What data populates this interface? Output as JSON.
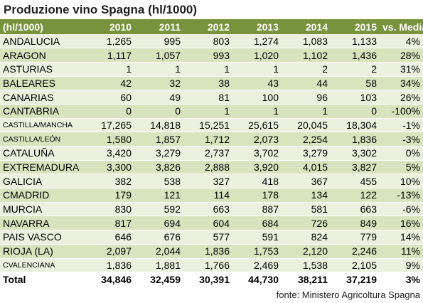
{
  "title": "Produzione vino Spagna (hl/1000)",
  "header": [
    "(hl/1000)",
    "2010",
    "2011",
    "2012",
    "2013",
    "2014",
    "2015",
    "vs. Media"
  ],
  "rows": [
    {
      "name": "ANDALUCIA",
      "values": [
        "1,265",
        "995",
        "803",
        "1,274",
        "1,083",
        "1,133",
        "4%"
      ]
    },
    {
      "name": "ARAGON",
      "values": [
        "1,117",
        "1,057",
        "993",
        "1,020",
        "1,102",
        "1,436",
        "28%"
      ]
    },
    {
      "name": "ASTURIAS",
      "values": [
        "1",
        "1",
        "1",
        "1",
        "2",
        "2",
        "31%"
      ]
    },
    {
      "name": "BALEARES",
      "values": [
        "42",
        "32",
        "38",
        "43",
        "44",
        "58",
        "34%"
      ]
    },
    {
      "name": "CANARIAS",
      "values": [
        "60",
        "49",
        "81",
        "100",
        "96",
        "103",
        "26%"
      ]
    },
    {
      "name": "CANTABRIA",
      "values": [
        "0",
        "0",
        "1",
        "1",
        "1",
        "0",
        "-100%"
      ]
    },
    {
      "name": "CASTILLA/MANCHA",
      "small": true,
      "values": [
        "17,265",
        "14,818",
        "15,251",
        "25,615",
        "20,045",
        "18,304",
        "-1%"
      ]
    },
    {
      "name": "CASTILLA/LEÓN",
      "small": true,
      "values": [
        "1,580",
        "1,857",
        "1,712",
        "2,073",
        "2,254",
        "1,836",
        "-3%"
      ]
    },
    {
      "name": "CATALUÑA",
      "values": [
        "3,420",
        "3,279",
        "2,737",
        "3,702",
        "3,279",
        "3,302",
        "0%"
      ]
    },
    {
      "name": "EXTREMADURA",
      "values": [
        "3,300",
        "3,826",
        "2,888",
        "3,920",
        "4,015",
        "3,827",
        "5%"
      ]
    },
    {
      "name": "GALICIA",
      "values": [
        "382",
        "538",
        "327",
        "418",
        "367",
        "455",
        "10%"
      ]
    },
    {
      "name": "CMADRID",
      "values": [
        "179",
        "121",
        "114",
        "178",
        "134",
        "122",
        "-13%"
      ]
    },
    {
      "name": "MURCIA",
      "values": [
        "830",
        "592",
        "663",
        "887",
        "581",
        "663",
        "-6%"
      ]
    },
    {
      "name": "NAVARRA",
      "values": [
        "817",
        "694",
        "604",
        "684",
        "726",
        "849",
        "16%"
      ]
    },
    {
      "name": "PAIS VASCO",
      "values": [
        "646",
        "676",
        "577",
        "591",
        "824",
        "779",
        "14%"
      ]
    },
    {
      "name": "RIOJA (LA)",
      "values": [
        "2,097",
        "2,044",
        "1,836",
        "1,753",
        "2,120",
        "2,246",
        "11%"
      ]
    },
    {
      "name": "CVALENCIANA",
      "small": true,
      "values": [
        "1,836",
        "1,881",
        "1,766",
        "2,469",
        "1,538",
        "2,105",
        "9%"
      ]
    }
  ],
  "total": {
    "name": "Total",
    "values": [
      "34,846",
      "32,459",
      "30,391",
      "44,730",
      "38,211",
      "37,219",
      "3%"
    ]
  },
  "source": "fonte: Ministero Agricoltura Spagna",
  "colors": {
    "header_bg": "#77933c",
    "row_light": "#ebf1de",
    "row_dark": "#d7e4bd"
  }
}
